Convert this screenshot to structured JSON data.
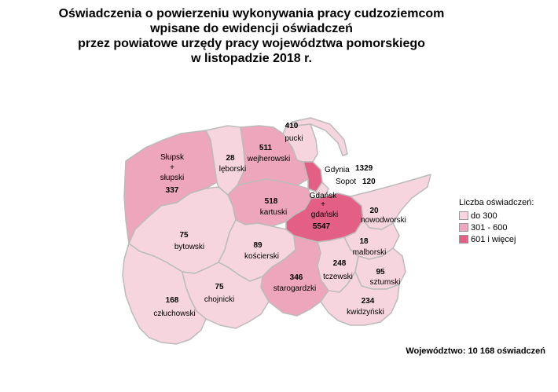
{
  "title": {
    "line1": "Oświadczenia o powierzeniu wykonywania pracy cudzoziemcom",
    "line2": "wpisane do ewidencji oświadczeń",
    "line3": "przez powiatowe urzędy pracy województwa pomorskiego",
    "line4": "w listopadzie 2018 r."
  },
  "colors": {
    "low": "#f7d5df",
    "mid": "#eea6bc",
    "high": "#e45f86",
    "border": "#bbbbbb"
  },
  "districts": [
    {
      "id": "puck",
      "value": "410",
      "name": "pucki",
      "class": "mid"
    },
    {
      "id": "wejherowo",
      "value": "511",
      "name": "wejherowski",
      "class": "mid"
    },
    {
      "id": "lebork",
      "value": "28",
      "name": "lęborski",
      "class": "low"
    },
    {
      "id": "slupsk",
      "name1": "Słupsk",
      "plus": "+",
      "name2": "słupski",
      "value": "337",
      "class": "mid"
    },
    {
      "id": "gdynia",
      "name": "Gdynia",
      "value": "1329",
      "class": "high"
    },
    {
      "id": "sopot",
      "name": "Sopot",
      "value": "120",
      "class": "low"
    },
    {
      "id": "kartuzy",
      "value": "518",
      "name": "kartuski",
      "class": "mid"
    },
    {
      "id": "gdansk",
      "name1": "Gdańsk",
      "plus": "+",
      "name2": "gdański",
      "value": "5547",
      "class": "high"
    },
    {
      "id": "nowydwor",
      "value": "20",
      "name": "nowodworski",
      "class": "low"
    },
    {
      "id": "bytow",
      "value": "75",
      "name": "bytowski",
      "class": "low"
    },
    {
      "id": "koscierzyna",
      "value": "89",
      "name": "kościerski",
      "class": "low"
    },
    {
      "id": "malbork",
      "value": "18",
      "name": "malborski",
      "class": "low"
    },
    {
      "id": "tczew",
      "value": "248",
      "name": "tczewski",
      "class": "low"
    },
    {
      "id": "sztum",
      "value": "95",
      "name": "sztumski",
      "class": "low"
    },
    {
      "id": "starogard",
      "value": "346",
      "name": "starogardzki",
      "class": "mid"
    },
    {
      "id": "chojnice",
      "value": "75",
      "name": "chojnicki",
      "class": "low"
    },
    {
      "id": "czluchow",
      "value": "168",
      "name": "człuchowski",
      "class": "low"
    },
    {
      "id": "kwidzyn",
      "value": "234",
      "name": "kwidzyński",
      "class": "low"
    }
  ],
  "legend": {
    "title": "Liczba oświadczeń:",
    "items": [
      {
        "label": "do 300",
        "color": "#f7d5df"
      },
      {
        "label": "301 - 600",
        "color": "#eea6bc"
      },
      {
        "label": "601 i więcej",
        "color": "#e45f86"
      }
    ]
  },
  "total": "Województwo: 10 168 oświadczeń"
}
